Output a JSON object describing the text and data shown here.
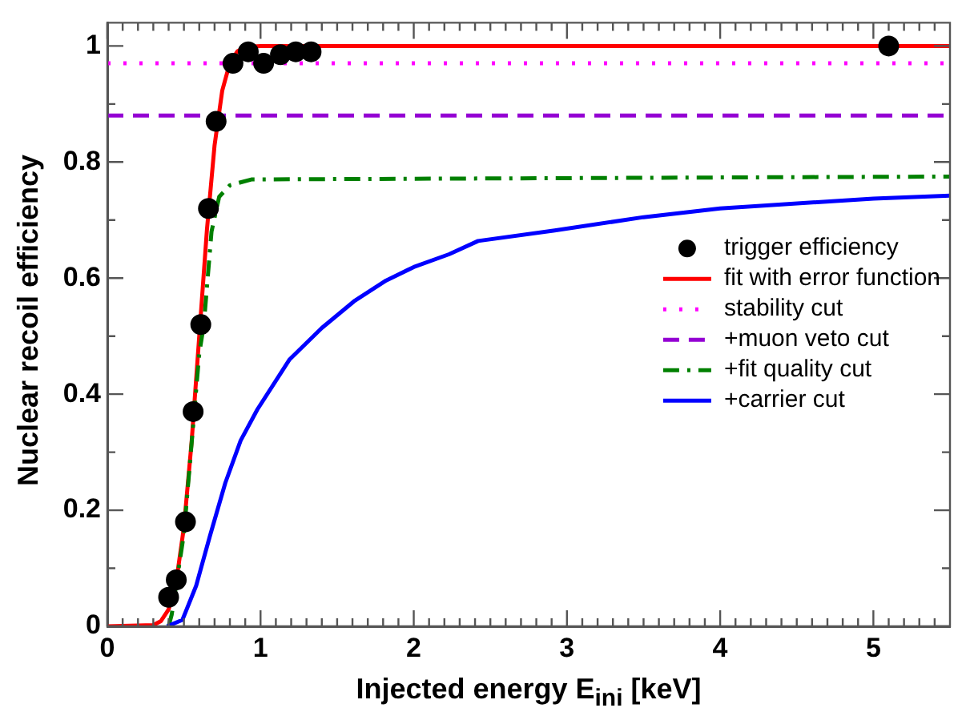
{
  "chart_data": {
    "type": "line",
    "xlabel": "Injected energy E$_{ini}$ [keV]",
    "ylabel": "Nuclear recoil efficiency",
    "xlim": [
      0,
      5.5
    ],
    "ylim": [
      0,
      1.04
    ],
    "xticks": [
      0,
      {
        "value": 0.1,
        "label": null
      },
      {
        "value": 0.2,
        "label": null
      },
      {
        "value": 0.3,
        "label": null
      },
      {
        "value": 0.4,
        "label": null
      },
      {
        "value": 0.5,
        "label": null
      },
      {
        "value": 0.6,
        "label": null
      },
      {
        "value": 0.7,
        "label": null
      },
      {
        "value": 0.8,
        "label": null
      },
      {
        "value": 0.9,
        "label": null
      },
      1,
      {
        "value": 1.1,
        "label": null
      },
      {
        "value": 1.2,
        "label": null
      },
      {
        "value": 1.3,
        "label": null
      },
      {
        "value": 1.4,
        "label": null
      },
      {
        "value": 1.5,
        "label": null
      },
      {
        "value": 1.6,
        "label": null
      },
      {
        "value": 1.7,
        "label": null
      },
      {
        "value": 1.8,
        "label": null
      },
      {
        "value": 1.9,
        "label": null
      },
      2,
      {
        "value": 2.1,
        "label": null
      },
      {
        "value": 2.2,
        "label": null
      },
      {
        "value": 2.3,
        "label": null
      },
      {
        "value": 2.4,
        "label": null
      },
      {
        "value": 2.5,
        "label": null
      },
      {
        "value": 2.6,
        "label": null
      },
      {
        "value": 2.7,
        "label": null
      },
      {
        "value": 2.8,
        "label": null
      },
      {
        "value": 2.9,
        "label": null
      },
      3,
      {
        "value": 3.1,
        "label": null
      },
      {
        "value": 3.2,
        "label": null
      },
      {
        "value": 3.3,
        "label": null
      },
      {
        "value": 3.4,
        "label": null
      },
      {
        "value": 3.5,
        "label": null
      },
      {
        "value": 3.6,
        "label": null
      },
      {
        "value": 3.7,
        "label": null
      },
      {
        "value": 3.8,
        "label": null
      },
      {
        "value": 3.9,
        "label": null
      },
      4,
      {
        "value": 4.1,
        "label": null
      },
      {
        "value": 4.2,
        "label": null
      },
      {
        "value": 4.3,
        "label": null
      },
      {
        "value": 4.4,
        "label": null
      },
      {
        "value": 4.5,
        "label": null
      },
      {
        "value": 4.6,
        "label": null
      },
      {
        "value": 4.7,
        "label": null
      },
      {
        "value": 4.8,
        "label": null
      },
      {
        "value": 4.9,
        "label": null
      },
      5,
      {
        "value": 5.1,
        "label": null
      },
      {
        "value": 5.2,
        "label": null
      },
      {
        "value": 5.3,
        "label": null
      },
      {
        "value": 5.4,
        "label": null
      }
    ],
    "yticks": [
      0,
      {
        "value": 0.1,
        "label": null
      },
      0.2,
      {
        "value": 0.3,
        "label": null
      },
      0.4,
      {
        "value": 0.5,
        "label": null
      },
      0.6,
      {
        "value": 0.7,
        "label": null
      },
      0.8,
      {
        "value": 0.9,
        "label": null
      },
      1
    ],
    "legend": "right",
    "grid": false,
    "series": [
      {
        "name": "trigger efficiency",
        "type": "scatter",
        "marker": "circle",
        "color": "#000000",
        "x": [
          0.4,
          0.45,
          0.51,
          0.56,
          0.61,
          0.66,
          0.71,
          0.82,
          0.92,
          1.02,
          1.13,
          1.23,
          1.33,
          5.1
        ],
        "values": [
          0.05,
          0.08,
          0.18,
          0.37,
          0.52,
          0.72,
          0.87,
          0.97,
          0.99,
          0.97,
          0.985,
          0.99,
          0.99,
          1.0
        ]
      },
      {
        "name": "fit with error function",
        "marker": "none",
        "line_style": "solid",
        "color": "#ff0000",
        "x": [
          0,
          0.3,
          0.35,
          0.4,
          0.45,
          0.5,
          0.55,
          0.6,
          0.65,
          0.7,
          0.75,
          0.8,
          0.85,
          0.9,
          1.0,
          5.5
        ],
        "values": [
          0,
          0.002,
          0.009,
          0.029,
          0.077,
          0.171,
          0.317,
          0.5,
          0.683,
          0.829,
          0.923,
          0.971,
          0.991,
          0.998,
          1.0,
          1.0
        ]
      },
      {
        "name": "stability cut",
        "marker": "none",
        "line_style": "dotted",
        "color": "#ff00ff",
        "x": [
          0,
          5.5
        ],
        "values": [
          0.97,
          0.97
        ]
      },
      {
        "name": "+muon veto cut",
        "marker": "none",
        "line_style": "dashed",
        "color": "#9400d3",
        "x": [
          0,
          5.5
        ],
        "values": [
          0.88,
          0.88
        ]
      },
      {
        "name": "+fit quality cut",
        "marker": "none",
        "line_style": "dashdot",
        "color": "#008000",
        "x": [
          0.4,
          0.42,
          0.5,
          0.6,
          0.63,
          0.68,
          0.73,
          0.8,
          0.94,
          5.5
        ],
        "values": [
          0,
          0.02,
          0.16,
          0.47,
          0.52,
          0.68,
          0.74,
          0.76,
          0.77,
          0.775
        ]
      },
      {
        "name": "+carrier cut",
        "marker": "none",
        "line_style": "solid",
        "color": "#0000ff",
        "x": [
          0.39,
          0.49,
          0.58,
          0.67,
          0.77,
          0.87,
          0.98,
          1.19,
          1.4,
          1.61,
          1.82,
          2.0,
          2.23,
          2.42,
          2.92,
          3.5,
          4.0,
          5.0,
          5.5
        ],
        "values": [
          0,
          0.011,
          0.07,
          0.156,
          0.247,
          0.32,
          0.374,
          0.46,
          0.514,
          0.56,
          0.596,
          0.619,
          0.641,
          0.664,
          0.682,
          0.705,
          0.72,
          0.737,
          0.742
        ]
      }
    ]
  }
}
